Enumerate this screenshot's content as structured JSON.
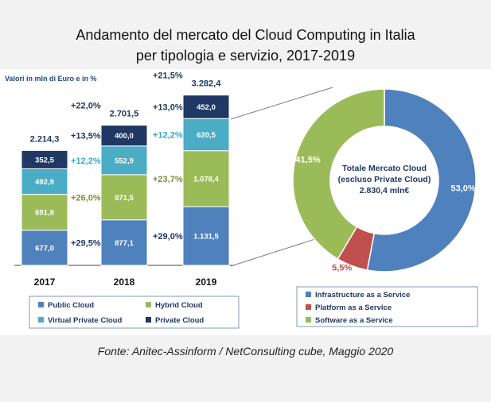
{
  "title": {
    "line1": "Andamento del mercato del Cloud Computing in Italia",
    "line2": "per tipologia e servizio, 2017-2019"
  },
  "unit_note": "Valori in mln di Euro e in %",
  "source": "Fonte: Anitec-Assinform / NetConsulting cube, Maggio 2020",
  "colors": {
    "public": "#4f81bd",
    "hybrid": "#9bbb59",
    "virtual_private": "#4bacc6",
    "private": "#1f3864",
    "iaas": "#4f81bd",
    "paas": "#c0504d",
    "saas": "#9bbb59"
  },
  "chart_data": [
    {
      "type": "bar",
      "stacked": true,
      "categories": [
        "2017",
        "2018",
        "2019"
      ],
      "series": [
        {
          "name": "Public Cloud",
          "values": [
            677.0,
            877.1,
            1131.5
          ],
          "labels": [
            "677,0",
            "877,1",
            "1.131,5"
          ],
          "growth": [
            null,
            "+29,5%",
            "+29,0%"
          ]
        },
        {
          "name": "Hybrid Cloud",
          "values": [
            691.8,
            871.5,
            1078.4
          ],
          "labels": [
            "691,8",
            "871,5",
            "1.078,4"
          ],
          "growth": [
            null,
            "+26,0%",
            "+23,7%"
          ]
        },
        {
          "name": "Virtual Private Cloud",
          "values": [
            492.9,
            552.9,
            620.5
          ],
          "labels": [
            "492,9",
            "552,9",
            "620,5"
          ],
          "growth": [
            null,
            "+12,2%",
            "+12,2%"
          ]
        },
        {
          "name": "Private Cloud",
          "values": [
            352.5,
            400.0,
            452.0
          ],
          "labels": [
            "352,5",
            "400,0",
            "452,0"
          ],
          "growth": [
            null,
            "+13,5%",
            "+13,0%"
          ]
        }
      ],
      "totals": [
        2214.3,
        2701.5,
        3282.4
      ],
      "total_labels": [
        "2.214,3",
        "2.701,5",
        "3.282,4"
      ],
      "total_growth": [
        null,
        "+22,0%",
        "+21,5%"
      ],
      "legend": [
        "Public Cloud",
        "Hybrid Cloud",
        "Virtual Private Cloud",
        "Private Cloud"
      ],
      "legend_position": "bottom"
    },
    {
      "type": "pie",
      "donut": true,
      "center_text": [
        "Totale Mercato Cloud",
        "(escluso Private Cloud)",
        "2.830,4 mln€"
      ],
      "slices": [
        {
          "name": "Infrastructure as a Service",
          "value": 53.0,
          "label": "53,0%"
        },
        {
          "name": "Platform as a Service",
          "value": 5.5,
          "label": "5,5%"
        },
        {
          "name": "Software as a Service",
          "value": 41.5,
          "label": "41,5%"
        }
      ],
      "legend_position": "bottom"
    }
  ]
}
